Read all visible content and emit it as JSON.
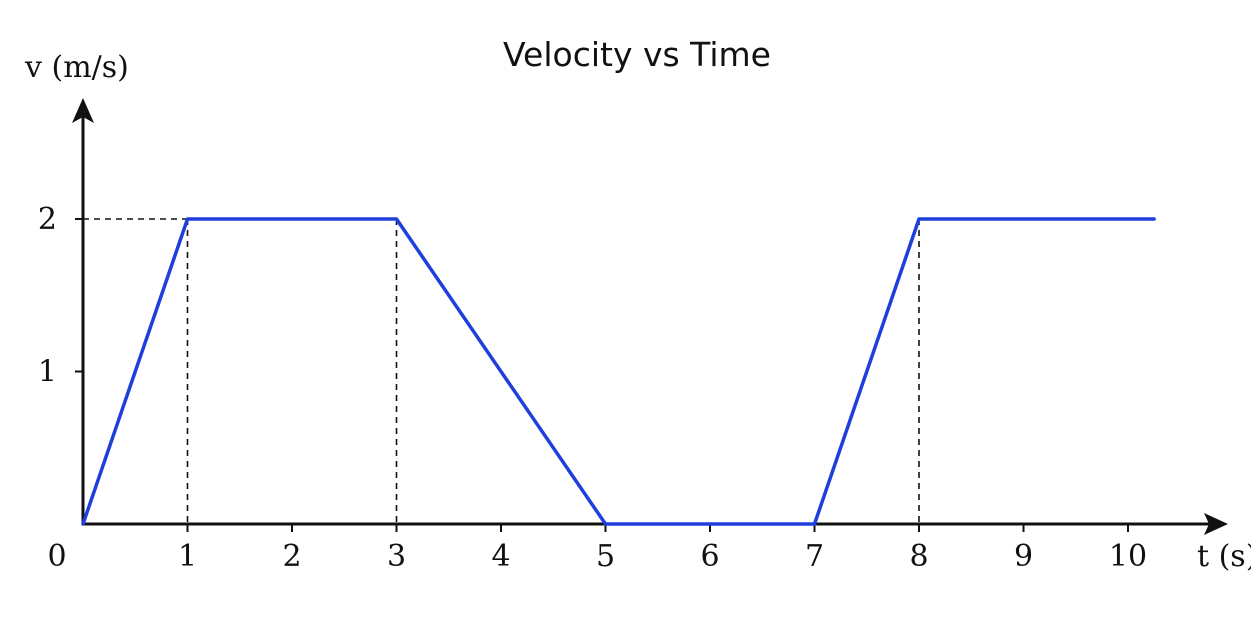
{
  "chart_data": {
    "type": "line",
    "title": "Velocity vs Time",
    "xlabel": "t (s)",
    "ylabel": "v (m/s)",
    "origin_label": "0",
    "x_ticks": [
      "1",
      "2",
      "3",
      "4",
      "5",
      "6",
      "7",
      "8",
      "9",
      "10"
    ],
    "y_ticks": [
      "1",
      "2"
    ],
    "series": [
      {
        "x": [
          0,
          1,
          3,
          5,
          7,
          8,
          10.25
        ],
        "y": [
          0,
          2,
          2,
          0,
          0,
          2,
          2
        ]
      }
    ],
    "guide_lines": [
      {
        "x": 1,
        "y": 2
      },
      {
        "x": 3,
        "y": 2
      },
      {
        "x": 8,
        "y": 2
      }
    ],
    "xlim": [
      0,
      10
    ],
    "ylim": [
      0,
      2
    ],
    "grid": false,
    "colors": {
      "series": "#1f3fdc",
      "axes": "#111111",
      "guides": "#111111"
    }
  }
}
